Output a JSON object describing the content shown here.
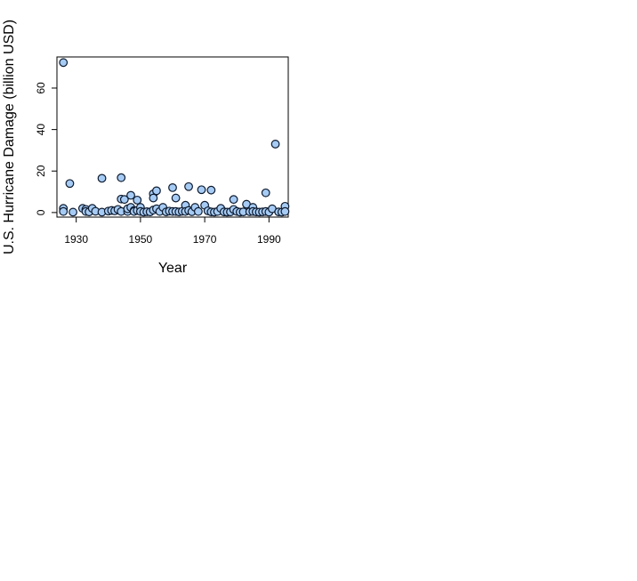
{
  "chart_data": {
    "type": "scatter",
    "title": "",
    "xlabel": "Year",
    "ylabel": "U.S. Hurricane Damage (billion USD)",
    "xlim": [
      1924,
      1996
    ],
    "ylim": [
      -2.2,
      75
    ],
    "x_ticks": [
      1930,
      1950,
      1970,
      1990
    ],
    "y_ticks": [
      0,
      20,
      40,
      60
    ],
    "grid": false,
    "legend": "none",
    "colors": {
      "fill": "#a6cbf4",
      "stroke": "#0d1a2e"
    },
    "points": [
      [
        1926,
        72.3
      ],
      [
        1926,
        2.0
      ],
      [
        1926,
        0.5
      ],
      [
        1928,
        14.0
      ],
      [
        1929,
        0.2
      ],
      [
        1932,
        2.0
      ],
      [
        1933,
        1.5
      ],
      [
        1933,
        0.5
      ],
      [
        1934,
        0.3
      ],
      [
        1935,
        2.0
      ],
      [
        1936,
        0.6
      ],
      [
        1938,
        16.5
      ],
      [
        1938,
        0.2
      ],
      [
        1940,
        0.7
      ],
      [
        1941,
        1.0
      ],
      [
        1942,
        0.8
      ],
      [
        1943,
        1.5
      ],
      [
        1944,
        16.8
      ],
      [
        1944,
        6.5
      ],
      [
        1944,
        0.5
      ],
      [
        1945,
        6.3
      ],
      [
        1946,
        0.5
      ],
      [
        1946,
        1.8
      ],
      [
        1947,
        8.3
      ],
      [
        1947,
        2.5
      ],
      [
        1948,
        1.0
      ],
      [
        1948,
        0.5
      ],
      [
        1949,
        6.0
      ],
      [
        1949,
        1.0
      ],
      [
        1950,
        2.5
      ],
      [
        1950,
        0.5
      ],
      [
        1951,
        0.2
      ],
      [
        1952,
        0.4
      ],
      [
        1953,
        0.3
      ],
      [
        1954,
        9.0
      ],
      [
        1954,
        7.0
      ],
      [
        1954,
        1.2
      ],
      [
        1955,
        10.5
      ],
      [
        1955,
        1.8
      ],
      [
        1956,
        0.5
      ],
      [
        1957,
        2.5
      ],
      [
        1958,
        0.3
      ],
      [
        1959,
        0.7
      ],
      [
        1960,
        12.0
      ],
      [
        1960,
        0.5
      ],
      [
        1961,
        7.0
      ],
      [
        1961,
        0.5
      ],
      [
        1962,
        0.3
      ],
      [
        1963,
        0.6
      ],
      [
        1964,
        3.5
      ],
      [
        1964,
        0.5
      ],
      [
        1965,
        12.5
      ],
      [
        1965,
        1.0
      ],
      [
        1966,
        0.4
      ],
      [
        1967,
        2.5
      ],
      [
        1968,
        0.5
      ],
      [
        1969,
        11.0
      ],
      [
        1970,
        3.5
      ],
      [
        1971,
        0.8
      ],
      [
        1972,
        10.8
      ],
      [
        1972,
        0.3
      ],
      [
        1973,
        0.2
      ],
      [
        1974,
        0.5
      ],
      [
        1975,
        2.0
      ],
      [
        1976,
        0.3
      ],
      [
        1977,
        0.2
      ],
      [
        1978,
        0.3
      ],
      [
        1979,
        6.3
      ],
      [
        1979,
        1.5
      ],
      [
        1980,
        0.5
      ],
      [
        1981,
        0.2
      ],
      [
        1982,
        0.3
      ],
      [
        1983,
        4.0
      ],
      [
        1984,
        0.4
      ],
      [
        1985,
        2.5
      ],
      [
        1985,
        0.5
      ],
      [
        1986,
        0.3
      ],
      [
        1987,
        0.2
      ],
      [
        1988,
        0.3
      ],
      [
        1989,
        9.5
      ],
      [
        1989,
        0.5
      ],
      [
        1990,
        0.2
      ],
      [
        1991,
        1.8
      ],
      [
        1992,
        33.0
      ],
      [
        1993,
        0.3
      ],
      [
        1994,
        0.2
      ],
      [
        1995,
        3.0
      ],
      [
        1995,
        0.5
      ]
    ]
  }
}
